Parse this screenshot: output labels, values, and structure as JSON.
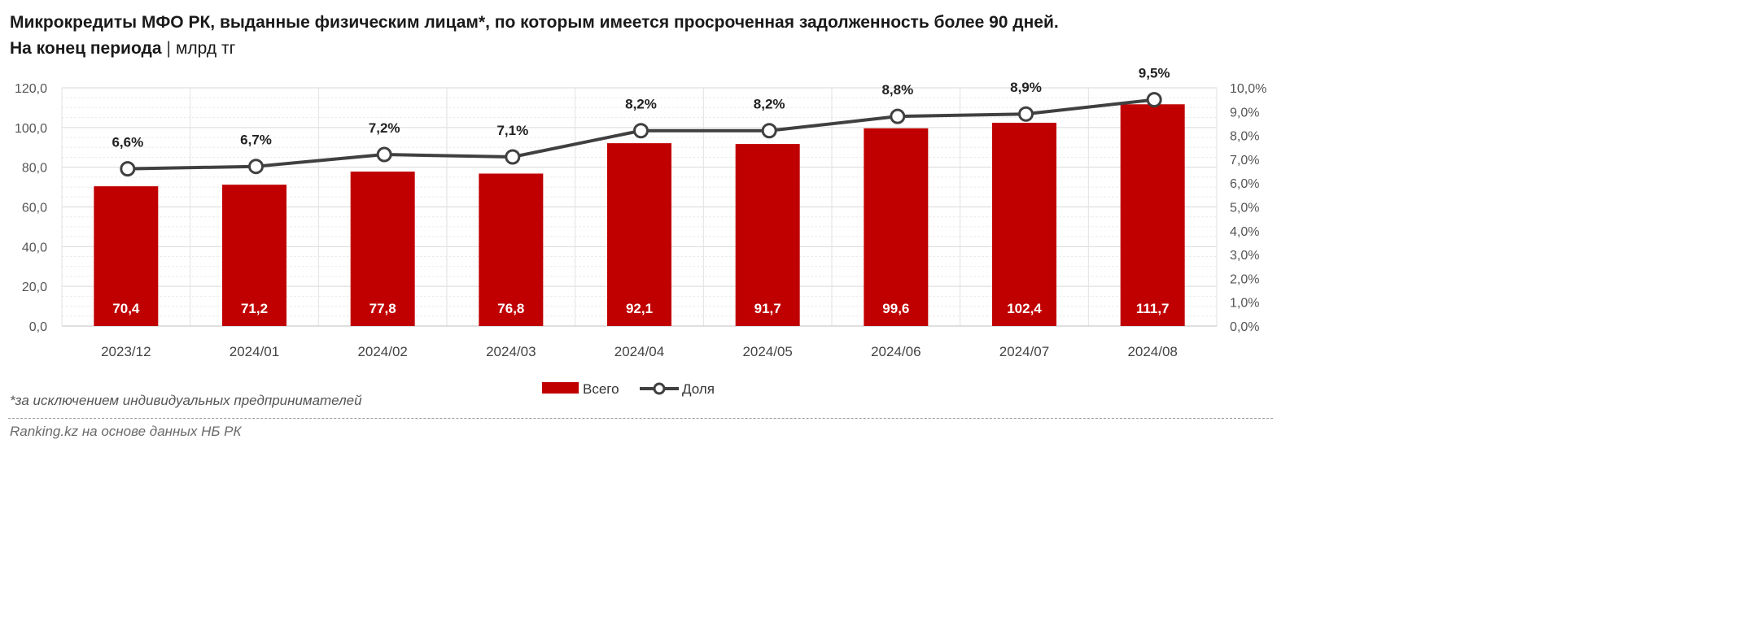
{
  "header": {
    "title": "Микрокредиты МФО РК, выданные физическим лицам*, по которым имеется просроченная задолженность более 90 дней.",
    "subtitle_bold": "На конец периода",
    "subtitle_sep": "|",
    "subtitle_unit": "млрд тг"
  },
  "footer": {
    "footnote": "*за исключением индивидуальных предпринимателей",
    "source": "Ranking.kz на основе данных НБ РК"
  },
  "colors": {
    "bar": "#c00000",
    "line": "#404040",
    "marker_fill": "#ffffff",
    "grid": "#d9d9d9"
  },
  "chart_data": {
    "type": "bar",
    "categories": [
      "2023/12",
      "2024/01",
      "2024/02",
      "2024/03",
      "2024/04",
      "2024/05",
      "2024/06",
      "2024/07",
      "2024/08"
    ],
    "series": [
      {
        "name": "Всего",
        "type": "bar",
        "axis": "left",
        "values": [
          70.4,
          71.2,
          77.8,
          76.8,
          92.1,
          91.7,
          99.6,
          102.4,
          111.7
        ],
        "labels": [
          "70,4",
          "71,2",
          "77,8",
          "76,8",
          "92,1",
          "91,7",
          "99,6",
          "102,4",
          "111,7"
        ]
      },
      {
        "name": "Доля",
        "type": "line",
        "axis": "right",
        "values": [
          6.6,
          6.7,
          7.2,
          7.1,
          8.2,
          8.2,
          8.8,
          8.9,
          9.5
        ],
        "labels": [
          "6,6%",
          "6,7%",
          "7,2%",
          "7,1%",
          "8,2%",
          "8,2%",
          "8,8%",
          "8,9%",
          "9,5%"
        ]
      }
    ],
    "y_left": {
      "lim": [
        0,
        120
      ],
      "ticks": [
        "0,0",
        "20,0",
        "40,0",
        "60,0",
        "80,0",
        "100,0",
        "120,0"
      ]
    },
    "y_right": {
      "lim": [
        0,
        10
      ],
      "ticks": [
        "0,0%",
        "1,0%",
        "2,0%",
        "3,0%",
        "4,0%",
        "5,0%",
        "6,0%",
        "7,0%",
        "8,0%",
        "9,0%",
        "10,0%"
      ]
    },
    "legend_position": "bottom-center",
    "grid": true
  }
}
